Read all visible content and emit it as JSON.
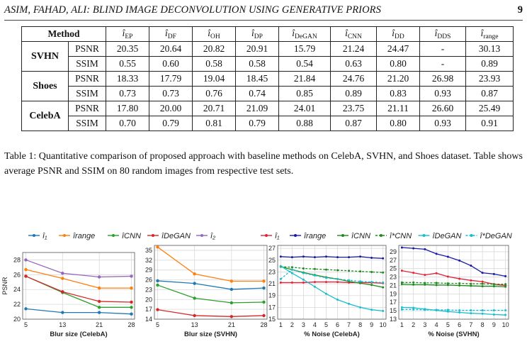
{
  "header": {
    "running_title": "ASIM, FAHAD, ALI: BLIND IMAGE DECONVOLUTION USING GENERATIVE PRIORS",
    "page_number": "9"
  },
  "table": {
    "method_header": "Method",
    "columns": [
      {
        "base": "i",
        "sub": "EP"
      },
      {
        "base": "i",
        "sub": "DF"
      },
      {
        "base": "i",
        "sub": "OH"
      },
      {
        "base": "i",
        "sub": "DP"
      },
      {
        "base": "i",
        "sub": "DeGAN"
      },
      {
        "base": "i",
        "sub": "CNN"
      },
      {
        "base": "i",
        "sub": "DD"
      },
      {
        "base": "i",
        "sub": "DDS"
      },
      {
        "base": "i",
        "sub": "range"
      }
    ],
    "groups": [
      {
        "dataset": "SVHN",
        "rows": [
          {
            "metric": "PSNR",
            "values": [
              "20.35",
              "20.64",
              "20.82",
              "20.91",
              "15.79",
              "21.24",
              "24.47",
              "-",
              "30.13"
            ]
          },
          {
            "metric": "SSIM",
            "values": [
              "0.55",
              "0.60",
              "0.58",
              "0.58",
              "0.54",
              "0.63",
              "0.80",
              "-",
              "0.89"
            ]
          }
        ]
      },
      {
        "dataset": "Shoes",
        "rows": [
          {
            "metric": "PSNR",
            "values": [
              "18.33",
              "17.79",
              "19.04",
              "18.45",
              "21.84",
              "24.76",
              "21.20",
              "26.98",
              "23.93"
            ]
          },
          {
            "metric": "SSIM",
            "values": [
              "0.73",
              "0.73",
              "0.76",
              "0.74",
              "0.85",
              "0.89",
              "0.83",
              "0.93",
              "0.87"
            ]
          }
        ]
      },
      {
        "dataset": "CelebA",
        "rows": [
          {
            "metric": "PSNR",
            "values": [
              "17.80",
              "20.00",
              "20.71",
              "21.09",
              "24.01",
              "23.75",
              "21.11",
              "26.60",
              "25.49"
            ]
          },
          {
            "metric": "SSIM",
            "values": [
              "0.70",
              "0.79",
              "0.81",
              "0.79",
              "0.88",
              "0.87",
              "0.80",
              "0.93",
              "0.91"
            ]
          }
        ]
      }
    ]
  },
  "caption": "Table 1: Quantitative comparison of proposed approach with baseline methods on CelebA, SVHN, and Shoes dataset. Table shows average PSNR and SSIM on 80 random images from respective test sets.",
  "colors": {
    "blue": "#1f77b4",
    "orange": "#ff7f0e",
    "green": "#2ca02c",
    "red": "#d62728",
    "purple": "#9467bd",
    "navy": "#1a1aa6",
    "darkgreen": "#1e8a1e",
    "cyan": "#17becf",
    "crimson": "#e0243a"
  },
  "legends": [
    {
      "id": "left",
      "items": [
        {
          "label": "î₁",
          "color": "#1f77b4",
          "dash": false
        },
        {
          "label": "îrange",
          "color": "#ff7f0e",
          "dash": false
        },
        {
          "label": "îCNN",
          "color": "#2ca02c",
          "dash": false
        },
        {
          "label": "îDeGAN",
          "color": "#d62728",
          "dash": false
        },
        {
          "label": "î₂",
          "color": "#9467bd",
          "dash": false
        }
      ]
    },
    {
      "id": "right",
      "items": [
        {
          "label": "î₁",
          "color": "#e0243a",
          "dash": false
        },
        {
          "label": "îrange",
          "color": "#1a1aa6",
          "dash": false
        },
        {
          "label": "îCNN",
          "color": "#1e8a1e",
          "dash": false
        },
        {
          "label": "î*CNN",
          "color": "#1e8a1e",
          "dash": true
        },
        {
          "label": "îDeGAN",
          "color": "#17becf",
          "dash": false
        },
        {
          "label": "î*DeGAN",
          "color": "#17becf",
          "dash": true
        }
      ]
    }
  ],
  "chart_data": [
    {
      "type": "line",
      "xlabel": "Blur size (CelebA)",
      "ylabel": "PSNR",
      "x": [
        5,
        13,
        21,
        28
      ],
      "xticks": [
        5,
        13,
        21,
        28
      ],
      "ylim": [
        20,
        29
      ],
      "yticks": [
        20,
        22,
        24,
        26,
        28
      ],
      "series": [
        {
          "name": "î₁",
          "color": "#1f77b4",
          "values": [
            21.4,
            20.9,
            20.9,
            20.7
          ]
        },
        {
          "name": "îrange",
          "color": "#ff7f0e",
          "values": [
            26.7,
            25.5,
            24.2,
            24.2
          ]
        },
        {
          "name": "îCNN",
          "color": "#2ca02c",
          "values": [
            25.8,
            23.6,
            21.6,
            21.6
          ]
        },
        {
          "name": "îDeGAN",
          "color": "#d62728",
          "values": [
            25.8,
            23.7,
            22.4,
            22.3
          ]
        },
        {
          "name": "î₂",
          "color": "#9467bd",
          "values": [
            28.0,
            26.2,
            25.7,
            25.8
          ]
        }
      ]
    },
    {
      "type": "line",
      "xlabel": "Blur size (SVHN)",
      "ylabel": "",
      "x": [
        5,
        13,
        21,
        28
      ],
      "xticks": [
        5,
        13,
        21,
        28
      ],
      "ylim": [
        14,
        36.5
      ],
      "yticks": [
        14,
        17,
        20,
        23,
        26,
        29,
        32,
        35
      ],
      "series": [
        {
          "name": "î₁",
          "color": "#1f77b4",
          "values": [
            25.7,
            24.9,
            23.1,
            23.5
          ]
        },
        {
          "name": "îrange",
          "color": "#ff7f0e",
          "values": [
            36.0,
            27.8,
            25.6,
            25.6
          ]
        },
        {
          "name": "îCNN",
          "color": "#2ca02c",
          "values": [
            24.4,
            20.4,
            19.0,
            19.2
          ]
        },
        {
          "name": "îDeGAN",
          "color": "#d62728",
          "values": [
            16.9,
            15.1,
            14.8,
            15.1
          ]
        }
      ]
    },
    {
      "type": "line",
      "xlabel": "% Noise (CelebA)",
      "ylabel": "",
      "x": [
        1,
        2,
        3,
        4,
        5,
        6,
        7,
        8,
        9,
        10
      ],
      "xticks": [
        1,
        2,
        3,
        4,
        5,
        6,
        7,
        8,
        9,
        10
      ],
      "ylim": [
        15,
        27.5
      ],
      "yticks": [
        15,
        17,
        19,
        21,
        23,
        25,
        27
      ],
      "series": [
        {
          "name": "î₁",
          "color": "#e0243a",
          "values": [
            21.2,
            21.2,
            21.2,
            21.3,
            21.3,
            21.3,
            21.2,
            21.2,
            21.2,
            21.1
          ]
        },
        {
          "name": "îrange",
          "color": "#1a1aa6",
          "values": [
            25.6,
            25.5,
            25.6,
            25.5,
            25.6,
            25.5,
            25.5,
            25.6,
            25.4,
            25.3
          ]
        },
        {
          "name": "îCNN",
          "color": "#1e8a1e",
          "values": [
            23.9,
            23.4,
            22.9,
            22.5,
            22.1,
            21.8,
            21.4,
            21.1,
            20.8,
            20.4
          ]
        },
        {
          "name": "î*CNN",
          "color": "#1e8a1e",
          "dash": true,
          "values": [
            23.9,
            23.8,
            23.6,
            23.5,
            23.4,
            23.3,
            23.2,
            23.1,
            23.0,
            22.9
          ]
        },
        {
          "name": "îDeGAN",
          "color": "#17becf",
          "values": [
            24.0,
            22.8,
            21.7,
            20.5,
            19.3,
            18.3,
            17.6,
            17.0,
            16.6,
            16.4
          ]
        },
        {
          "name": "î*DeGAN",
          "color": "#17becf",
          "dash": true,
          "values": [
            21.8,
            23.4,
            22.8,
            22.4,
            22.0,
            21.8,
            21.6,
            21.4,
            21.3,
            21.2
          ]
        }
      ]
    },
    {
      "type": "line",
      "xlabel": "% Noise (SVHN)",
      "ylabel": "",
      "x": [
        1,
        2,
        3,
        4,
        5,
        6,
        7,
        8,
        9,
        10
      ],
      "xticks": [
        1,
        2,
        3,
        4,
        5,
        6,
        7,
        8,
        9,
        10
      ],
      "ylim": [
        13,
        30.5
      ],
      "yticks": [
        13,
        15,
        17,
        19,
        21,
        23,
        25,
        27,
        29
      ],
      "series": [
        {
          "name": "î₁",
          "color": "#e0243a",
          "values": [
            24.5,
            24.0,
            23.5,
            23.9,
            23.1,
            22.6,
            22.2,
            21.9,
            21.3,
            21.0
          ]
        },
        {
          "name": "îrange",
          "color": "#1a1aa6",
          "values": [
            30.0,
            29.8,
            29.6,
            28.5,
            27.8,
            26.9,
            25.7,
            24.0,
            23.7,
            23.2
          ]
        },
        {
          "name": "îCNN",
          "color": "#1e8a1e",
          "values": [
            21.3,
            21.2,
            21.2,
            21.1,
            21.1,
            21.0,
            20.9,
            20.8,
            20.8,
            20.7
          ]
        },
        {
          "name": "î*CNN",
          "color": "#1e8a1e",
          "dash": true,
          "values": [
            21.7,
            21.7,
            21.6,
            21.6,
            21.5,
            21.5,
            21.4,
            21.4,
            21.3,
            21.3
          ]
        },
        {
          "name": "îDeGAN",
          "color": "#17becf",
          "values": [
            15.8,
            15.7,
            15.4,
            15.1,
            14.8,
            14.6,
            14.4,
            14.3,
            14.1,
            14.0
          ]
        },
        {
          "name": "î*DeGAN",
          "color": "#17becf",
          "dash": true,
          "values": [
            15.3,
            15.3,
            15.2,
            15.2,
            15.2,
            15.1,
            15.1,
            15.1,
            15.1,
            15.1
          ]
        }
      ]
    }
  ]
}
